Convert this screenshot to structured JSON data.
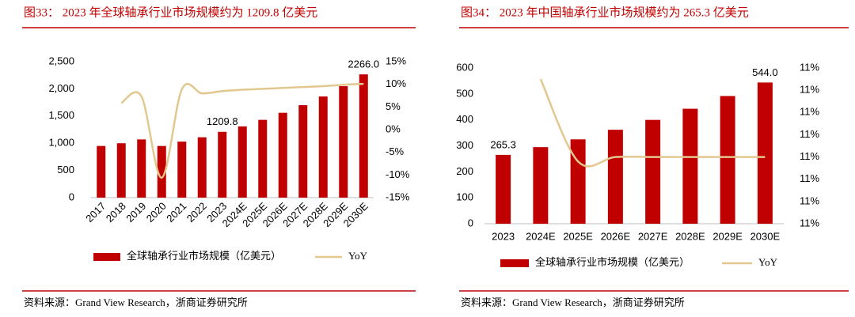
{
  "chart_data": [
    {
      "type": "combo",
      "title": "图33：  2023 年全球轴承行业市场规模约为 1209.8 亿美元",
      "categories": [
        "2017",
        "2018",
        "2019",
        "2020",
        "2021",
        "2022",
        "2023",
        "2024E",
        "2025E",
        "2026E",
        "2027E",
        "2028E",
        "2029E",
        "2030E"
      ],
      "series": [
        {
          "name": "全球轴承行业市场规模（亿美元）",
          "type": "bar",
          "color": "#c00000",
          "values": [
            950,
            1000,
            1070,
            950,
            1030,
            1110,
            1209.8,
            1310,
            1430,
            1560,
            1700,
            1860,
            2050,
            2266
          ],
          "value_labels": [
            null,
            null,
            null,
            null,
            null,
            null,
            "1209.8",
            null,
            null,
            null,
            null,
            null,
            null,
            "2266.0"
          ]
        },
        {
          "name": "YoY",
          "type": "line",
          "axis": "y2",
          "color": "#e2c88e",
          "values": [
            null,
            5.9,
            7.3,
            -10.6,
            8.9,
            8.0,
            8.5,
            8.8,
            9.0,
            9.2,
            9.4,
            9.6,
            9.9,
            10.1
          ]
        }
      ],
      "ylim": [
        0,
        2500
      ],
      "yticks": [
        0,
        500,
        {
          "value": 1000,
          "label": "1,000"
        },
        {
          "value": 1500,
          "label": "1,500"
        },
        {
          "value": 2000,
          "label": "2,000"
        },
        {
          "value": 2500,
          "label": "2,500"
        }
      ],
      "y2lim": [
        -15,
        15
      ],
      "y2ticks": [
        {
          "value": -15,
          "label": "-15%"
        },
        {
          "value": -10,
          "label": "-10%"
        },
        {
          "value": -5,
          "label": "-5%"
        },
        {
          "value": 0,
          "label": "0%"
        },
        {
          "value": 5,
          "label": "5%"
        },
        {
          "value": 10,
          "label": "10%"
        },
        {
          "value": 15,
          "label": "15%"
        }
      ],
      "source": "资料来源：Grand View Research，浙商证券研究所"
    },
    {
      "type": "combo",
      "title": "图34：  2023 年中国轴承行业市场规模约为 265.3 亿美元",
      "categories": [
        "2023",
        "2024E",
        "2025E",
        "2026E",
        "2027E",
        "2028E",
        "2029E",
        "2030E"
      ],
      "series": [
        {
          "name": "全球轴承行业市场规模（亿美元）",
          "type": "bar",
          "color": "#c00000",
          "values": [
            265.3,
            295,
            325,
            362,
            400,
            443,
            492,
            544
          ],
          "value_labels": [
            "265.3",
            null,
            null,
            null,
            null,
            null,
            null,
            "544.0"
          ]
        },
        {
          "name": "YoY",
          "type": "line",
          "axis": "y2",
          "color": "#e2c88e",
          "values": [
            null,
            11.25,
            10.88,
            10.9,
            10.9,
            10.9,
            10.9,
            10.9
          ]
        }
      ],
      "ylim": [
        0,
        600
      ],
      "yticks": [
        0,
        100,
        200,
        300,
        400,
        500,
        600
      ],
      "y2lim": [
        10.6,
        11.3
      ],
      "y2ticks": [
        {
          "value": 10.6,
          "label": "11%"
        },
        {
          "value": 10.7,
          "label": "11%"
        },
        {
          "value": 10.8,
          "label": "11%"
        },
        {
          "value": 10.9,
          "label": "11%"
        },
        {
          "value": 11.0,
          "label": "11%"
        },
        {
          "value": 11.1,
          "label": "11%"
        },
        {
          "value": 11.2,
          "label": "11%"
        },
        {
          "value": 11.3,
          "label": "11%"
        }
      ],
      "source": "资料来源：Grand View Research，浙商证券研究所"
    }
  ]
}
